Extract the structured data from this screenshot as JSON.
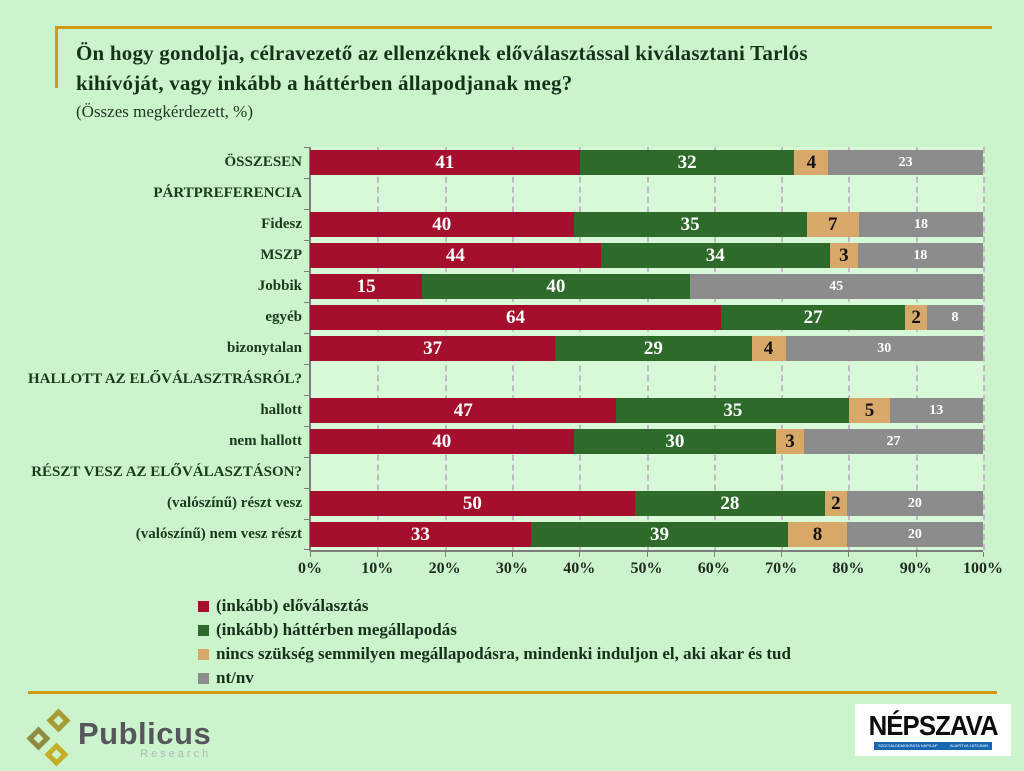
{
  "header": {
    "title_line1": "Ön hogy gondolja, célravezető az ellenzéknek előválasztással kiválasztani Tarlós",
    "title_line2": "kihívóját, vagy inkább a háttérben állapodjanak meg?",
    "subtitle": "(Összes megkérdezett, %)"
  },
  "chart_data": {
    "type": "bar",
    "stacked": true,
    "orientation": "horizontal",
    "xlim": [
      0,
      100
    ],
    "x_ticks": [
      "0%",
      "10%",
      "20%",
      "30%",
      "40%",
      "50%",
      "60%",
      "70%",
      "80%",
      "90%",
      "100%"
    ],
    "grid": "dashed-vertical",
    "legend_position": "bottom-left",
    "series": [
      {
        "name": "(inkább) előválasztás",
        "color": "#a50f2d",
        "label_color": "#ffffff"
      },
      {
        "name": "(inkább) háttérben megállapodás",
        "color": "#2e6b2b",
        "label_color": "#ffffff"
      },
      {
        "name": "nincs szükség semmilyen megállapodásra, mindenki induljon el, aki akar és tud",
        "color": "#d8a868",
        "label_color": "#121212"
      },
      {
        "name": "nt/nv",
        "color": "#8c8c8c",
        "label_color": "#ffffff"
      }
    ],
    "rows": [
      {
        "label": "ÖSSZESEN",
        "type": "bar",
        "values": [
          41,
          32,
          4,
          23
        ]
      },
      {
        "label": "PÁRTPREFERENCIA",
        "type": "header"
      },
      {
        "label": "Fidesz",
        "type": "bar",
        "values": [
          40,
          35,
          7,
          18
        ]
      },
      {
        "label": "MSZP",
        "type": "bar",
        "values": [
          44,
          34,
          3,
          18
        ]
      },
      {
        "label": "Jobbik",
        "type": "bar",
        "values": [
          15,
          40,
          0,
          45
        ]
      },
      {
        "label": "egyéb",
        "type": "bar",
        "values": [
          64,
          27,
          2,
          8
        ]
      },
      {
        "label": "bizonytalan",
        "type": "bar",
        "values": [
          37,
          29,
          4,
          30
        ]
      },
      {
        "label": "HALLOTT AZ ELŐVÁLASZTRÁSRÓL?",
        "type": "header"
      },
      {
        "label": "hallott",
        "type": "bar",
        "values": [
          47,
          35,
          5,
          13
        ]
      },
      {
        "label": "nem hallott",
        "type": "bar",
        "values": [
          40,
          30,
          3,
          27
        ]
      },
      {
        "label": "RÉSZT VESZ AZ ELŐVÁLASZTÁSON?",
        "type": "header"
      },
      {
        "label": "(valószínű) részt vesz",
        "type": "bar",
        "values": [
          50,
          28,
          2,
          20
        ]
      },
      {
        "label": "(valószínű) nem vesz részt",
        "type": "bar",
        "values": [
          33,
          39,
          8,
          20
        ]
      }
    ]
  },
  "footer": {
    "publicus": {
      "name": "Publicus",
      "sub": "Research"
    },
    "nepszava": {
      "name": "NÉPSZAVA",
      "tagline_left": "SZOCIÁLDEMOKRATA NAPILAP",
      "tagline_right": "ALAPÍTVA 1873-BAN"
    }
  },
  "colors": {
    "page_background": "#cbf4cd",
    "plot_background": "#d7f9d7",
    "accent_gold": "#d19a12",
    "title_text": "#16331a"
  }
}
